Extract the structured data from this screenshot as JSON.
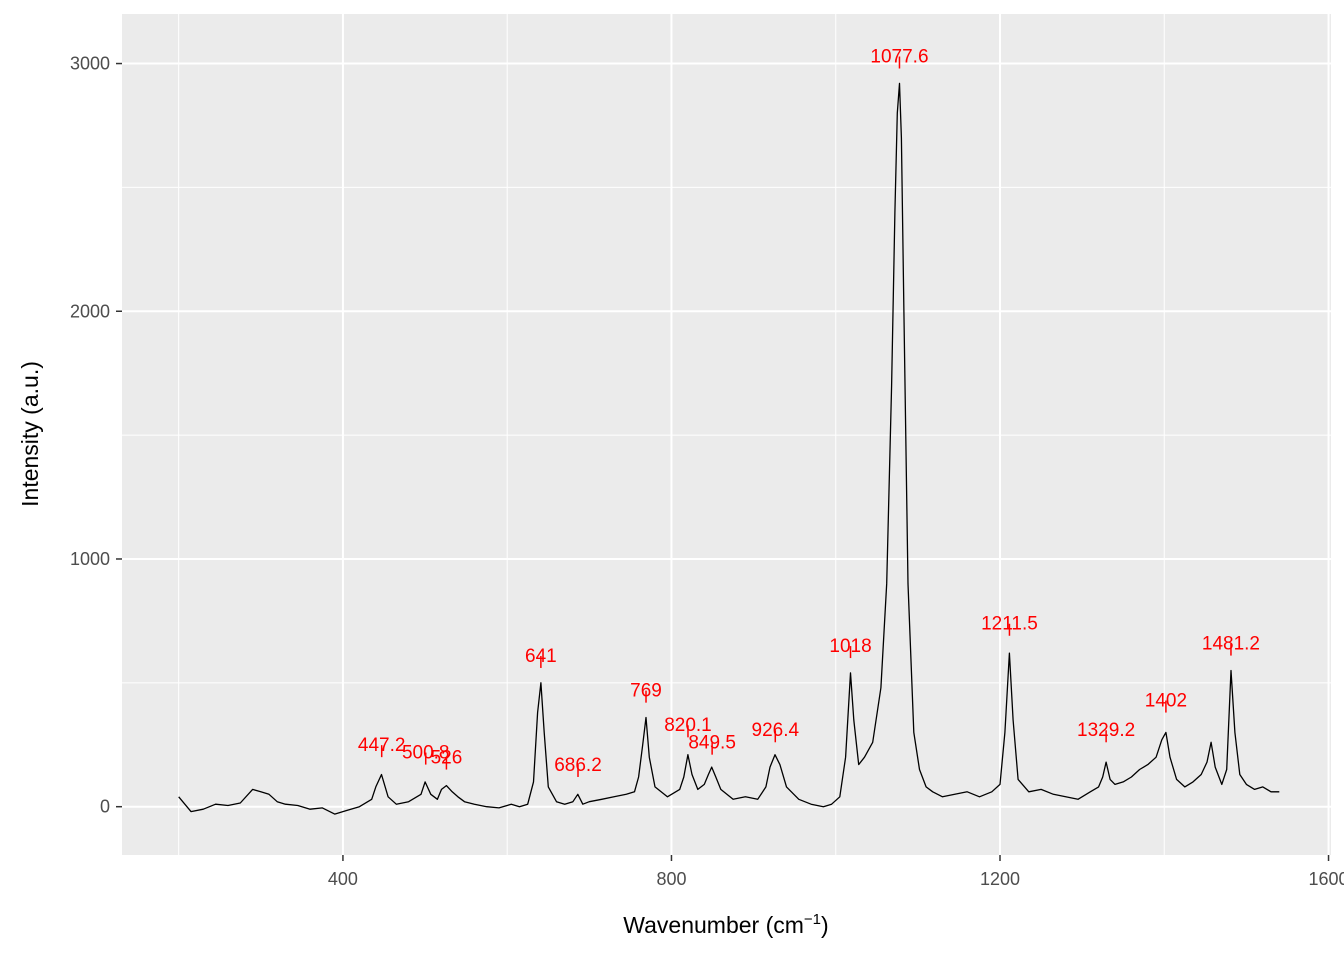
{
  "chart_data": {
    "type": "line",
    "xlabel": "Wavenumber (cm",
    "xlabel_superscript": "−1",
    "xlabel_suffix": ")",
    "ylabel": "Intensity (a.u.)",
    "xlim": [
      131,
      1603
    ],
    "ylim": [
      -195,
      3200
    ],
    "x_ticks": [
      400,
      800,
      1200,
      1600
    ],
    "y_ticks": [
      0,
      1000,
      2000,
      3000
    ],
    "grid": true,
    "background": "#ebebeb",
    "line_color": "#000000",
    "label_color": "#ff0000",
    "series": [
      {
        "x": [
          200,
          215,
          230,
          245,
          260,
          275,
          290,
          300,
          310,
          320,
          330,
          345,
          360,
          375,
          390,
          405,
          420,
          435,
          440,
          447,
          455,
          465,
          480,
          495,
          500,
          507,
          515,
          520,
          526,
          533,
          540,
          548,
          560,
          575,
          590,
          605,
          615,
          625,
          632,
          637,
          641,
          645,
          650,
          660,
          670,
          680,
          686,
          692,
          700,
          715,
          730,
          745,
          755,
          760,
          765,
          769,
          773,
          780,
          795,
          810,
          815,
          820,
          825,
          832,
          840,
          845,
          849,
          854,
          860,
          875,
          890,
          905,
          915,
          920,
          926,
          932,
          940,
          955,
          970,
          985,
          995,
          1005,
          1012,
          1018,
          1022,
          1028,
          1035,
          1045,
          1055,
          1062,
          1068,
          1072,
          1075,
          1077.6,
          1080,
          1083,
          1088,
          1095,
          1102,
          1110,
          1118,
          1130,
          1145,
          1160,
          1175,
          1190,
          1200,
          1206,
          1211.5,
          1216,
          1222,
          1235,
          1250,
          1265,
          1280,
          1295,
          1310,
          1320,
          1325,
          1329.2,
          1334,
          1340,
          1350,
          1360,
          1370,
          1380,
          1390,
          1397,
          1402,
          1407,
          1415,
          1425,
          1435,
          1445,
          1452,
          1457,
          1462,
          1470,
          1476,
          1481.2,
          1486,
          1492,
          1500,
          1510,
          1520,
          1530,
          1540
        ],
        "values": [
          40,
          -20,
          -10,
          10,
          5,
          15,
          70,
          60,
          50,
          20,
          10,
          5,
          -10,
          -5,
          -30,
          -15,
          0,
          30,
          80,
          130,
          40,
          10,
          20,
          50,
          100,
          50,
          30,
          70,
          85,
          60,
          40,
          20,
          10,
          0,
          -5,
          10,
          0,
          10,
          100,
          380,
          500,
          300,
          80,
          20,
          10,
          20,
          50,
          10,
          20,
          30,
          40,
          50,
          60,
          120,
          250,
          360,
          200,
          80,
          40,
          70,
          120,
          210,
          130,
          70,
          90,
          130,
          160,
          120,
          70,
          30,
          40,
          30,
          80,
          160,
          210,
          170,
          80,
          30,
          10,
          0,
          10,
          40,
          200,
          540,
          350,
          170,
          200,
          260,
          480,
          900,
          1700,
          2400,
          2800,
          2920,
          2700,
          2000,
          900,
          300,
          150,
          80,
          60,
          40,
          50,
          60,
          40,
          60,
          90,
          300,
          620,
          350,
          110,
          60,
          70,
          50,
          40,
          30,
          60,
          80,
          120,
          180,
          110,
          90,
          100,
          120,
          150,
          170,
          200,
          270,
          300,
          200,
          110,
          80,
          100,
          130,
          180,
          260,
          160,
          90,
          150,
          550,
          300,
          130,
          90,
          70,
          80,
          60,
          60
        ]
      }
    ],
    "peaks": [
      {
        "x": 447.2,
        "label": "447.2",
        "tick_top": 200,
        "text_y": 253
      },
      {
        "x": 500.8,
        "label": "500.8",
        "tick_top": 170,
        "text_y": 223
      },
      {
        "x": 526,
        "label": "526",
        "tick_top": 150,
        "text_y": 203
      },
      {
        "x": 641,
        "label": "641",
        "tick_top": 560,
        "text_y": 613
      },
      {
        "x": 686.2,
        "label": "686.2",
        "tick_top": 120,
        "text_y": 173
      },
      {
        "x": 769,
        "label": "769",
        "tick_top": 420,
        "text_y": 473
      },
      {
        "x": 820.1,
        "label": "820.1",
        "tick_top": 280,
        "text_y": 333
      },
      {
        "x": 849.5,
        "label": "849.5",
        "tick_top": 210,
        "text_y": 263
      },
      {
        "x": 926.4,
        "label": "926.4",
        "tick_top": 260,
        "text_y": 313
      },
      {
        "x": 1018,
        "label": "1018",
        "tick_top": 600,
        "text_y": 653
      },
      {
        "x": 1077.6,
        "label": "1077.6",
        "tick_top": 2980,
        "text_y": 3033
      },
      {
        "x": 1211.5,
        "label": "1211.5",
        "tick_top": 690,
        "text_y": 743
      },
      {
        "x": 1329.2,
        "label": "1329.2",
        "tick_top": 260,
        "text_y": 313
      },
      {
        "x": 1402,
        "label": "1402",
        "tick_top": 380,
        "text_y": 433
      },
      {
        "x": 1481.2,
        "label": "1481.2",
        "tick_top": 610,
        "text_y": 663
      }
    ]
  }
}
